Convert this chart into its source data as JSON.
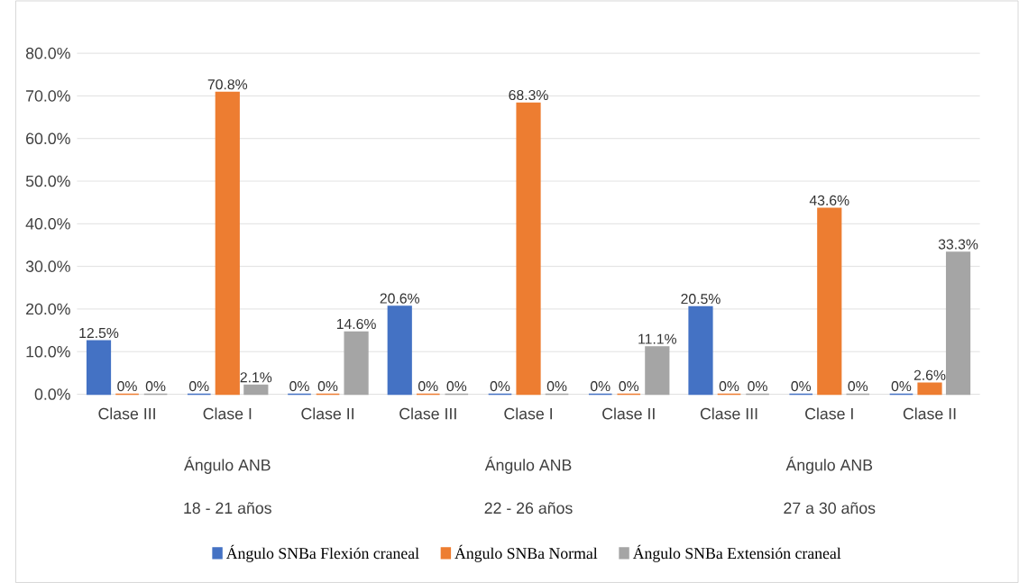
{
  "chart_data": {
    "type": "bar",
    "categories": [
      "Clase III",
      "Clase I",
      "Clase II",
      "Clase III",
      "Clase I",
      "Clase II",
      "Clase III",
      "Clase I",
      "Clase II"
    ],
    "series": [
      {
        "name": "Ángulo SNBa Flexión craneal",
        "color": "#4472c4",
        "values": [
          12.5,
          0,
          0,
          20.6,
          0,
          0,
          20.5,
          0,
          0
        ],
        "value_labels": [
          "12.5%",
          "0%",
          "0%",
          "20.6%",
          "0%",
          "0%",
          "20.5%",
          "0%",
          "0%"
        ]
      },
      {
        "name": "Ángulo SNBa Normal",
        "color": "#ed7d31",
        "values": [
          0,
          70.8,
          0,
          0,
          68.3,
          0,
          0,
          43.6,
          2.6
        ],
        "value_labels": [
          "0%",
          "70.8%",
          "0%",
          "0%",
          "68.3%",
          "0%",
          "0%",
          "43.6%",
          "2.6%"
        ]
      },
      {
        "name": "Ángulo SNBa Extensión craneal",
        "color": "#a5a5a5",
        "values": [
          0,
          2.1,
          14.6,
          0,
          0,
          11.1,
          0,
          0,
          33.3
        ],
        "value_labels": [
          "0%",
          "2.1%",
          "14.6%",
          "0%",
          "0%",
          "11.1%",
          "0%",
          "0%",
          "33.3%"
        ]
      }
    ],
    "annotations": [
      "Ángulo ANB",
      "18 - 21 años",
      "Ángulo ANB",
      "22 - 26 años",
      "Ángulo ANB",
      "27 a 30 años"
    ],
    "ylim": [
      0,
      80
    ],
    "yticks": [
      {
        "value": 0,
        "label": "0.0%"
      },
      {
        "value": 10,
        "label": "10.0%"
      },
      {
        "value": 20,
        "label": "20.0%"
      },
      {
        "value": 30,
        "label": "30.0%"
      },
      {
        "value": 40,
        "label": "40.0%"
      },
      {
        "value": 50,
        "label": "50.0%"
      },
      {
        "value": 60,
        "label": "60.0%"
      },
      {
        "value": 70,
        "label": "70.0%"
      },
      {
        "value": 80,
        "label": "80.0%"
      }
    ],
    "grid": "y",
    "legend": "bottom"
  }
}
